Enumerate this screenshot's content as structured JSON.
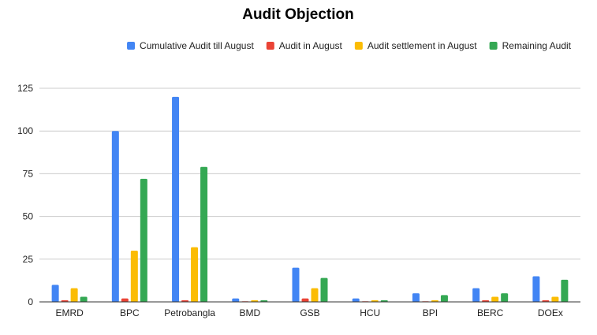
{
  "chart_data": {
    "type": "bar",
    "title": "Audit Objection",
    "xlabel": "",
    "ylabel": "",
    "categories": [
      "EMRD",
      "BPC",
      "Petrobangla",
      "BMD",
      "GSB",
      "HCU",
      "BPI",
      "BERC",
      "DOEx"
    ],
    "series": [
      {
        "name": "Cumulative Audit till August",
        "color": "#4285f4",
        "values": [
          10,
          100,
          120,
          2,
          20,
          2,
          5,
          8,
          15
        ]
      },
      {
        "name": "Audit in August",
        "color": "#ea4335",
        "values": [
          1,
          2,
          1,
          0,
          2,
          0,
          0,
          1,
          1
        ]
      },
      {
        "name": "Audit settlement in August",
        "color": "#fbbc04",
        "values": [
          8,
          30,
          32,
          1,
          8,
          1,
          1,
          3,
          3
        ]
      },
      {
        "name": "Remaining Audit",
        "color": "#34a853",
        "values": [
          3,
          72,
          79,
          1,
          14,
          1,
          4,
          5,
          13
        ]
      }
    ],
    "ylim": [
      0,
      125
    ],
    "yticks": [
      0,
      25,
      50,
      75,
      100,
      125
    ],
    "grid": true,
    "legend_position": "top-right"
  }
}
